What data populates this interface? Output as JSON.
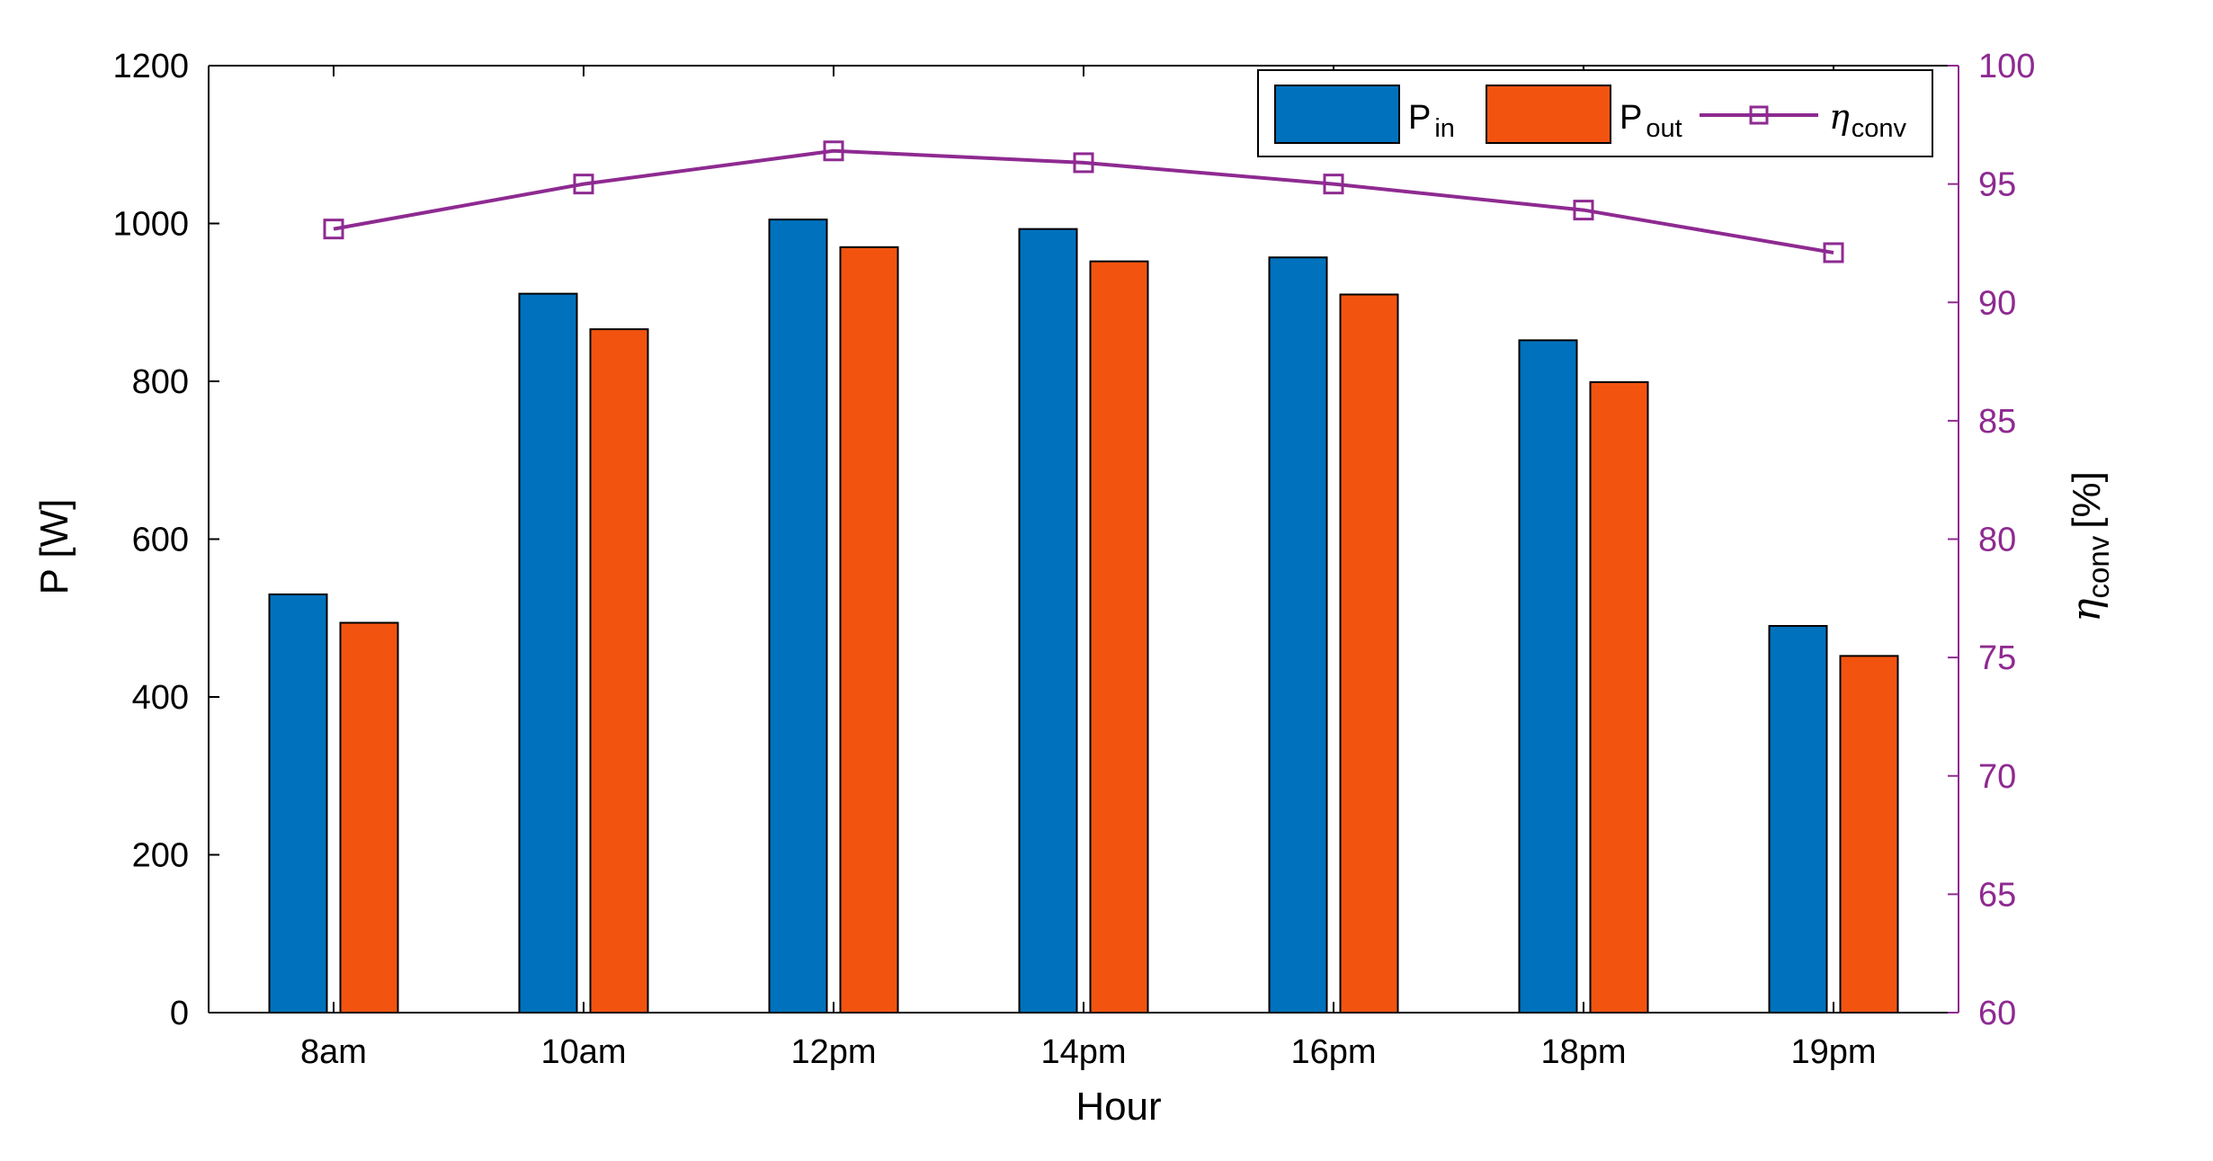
{
  "chart_data": {
    "type": "bar",
    "title": "",
    "xlabel": "Hour",
    "ylabel": "P [W]",
    "y2label": {
      "symbol": "η",
      "sub": "conv",
      "unit": "[%]"
    },
    "categories": [
      "8am",
      "10am",
      "12pm",
      "14pm",
      "16pm",
      "18pm",
      "19pm"
    ],
    "ylim": [
      0,
      1200
    ],
    "yticks": [
      0,
      200,
      400,
      600,
      800,
      1000,
      1200
    ],
    "y2lim": [
      60,
      100
    ],
    "y2ticks": [
      60,
      65,
      70,
      75,
      80,
      85,
      90,
      95,
      100
    ],
    "legend_position": "top-right",
    "colors": {
      "pin": "#0072BD",
      "pout": "#F25410",
      "eta": "#8E2A91",
      "axis": "#000000"
    },
    "series": [
      {
        "name": "Pin",
        "symbol": "P",
        "sub": "in",
        "type": "bar",
        "axis": "left",
        "values": [
          530,
          911,
          1005,
          993,
          957,
          852,
          490
        ]
      },
      {
        "name": "Pout",
        "symbol": "P",
        "sub": "out",
        "type": "bar",
        "axis": "left",
        "values": [
          494,
          866,
          970,
          952,
          910,
          799,
          452
        ]
      },
      {
        "name": "eta_conv",
        "symbol": "η",
        "sub": "conv",
        "type": "line",
        "marker": "square",
        "axis": "right",
        "values": [
          93.1,
          95.0,
          96.4,
          95.9,
          95.0,
          93.9,
          92.1
        ]
      }
    ]
  }
}
